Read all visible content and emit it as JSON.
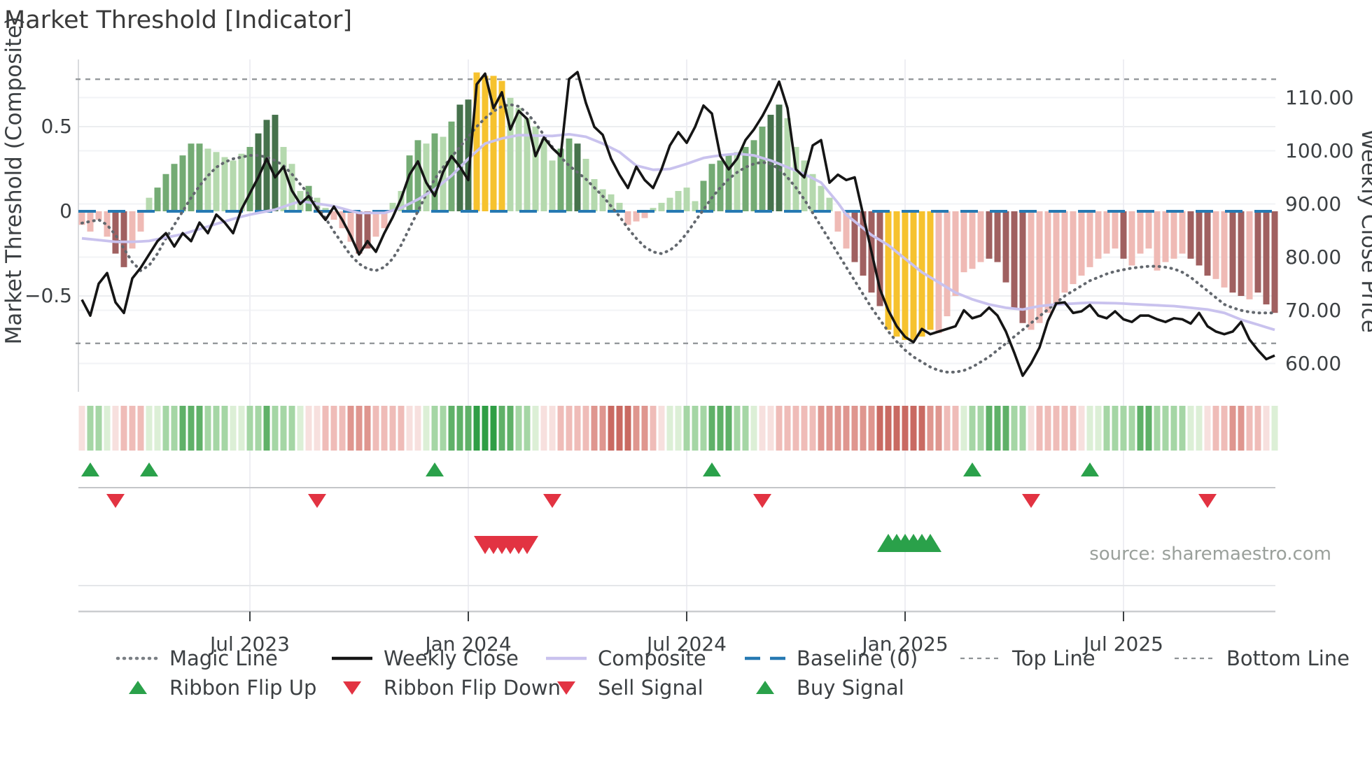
{
  "page": {
    "title": "Market Threshold [Indicator]",
    "source_credit": "source: sharemaestro.com"
  },
  "axes": {
    "left_label": "Market Threshold (Composite)",
    "right_label": "Weekly Close Price",
    "left_tick_labels": [
      "0.5",
      "0",
      "−0.5"
    ],
    "left_tick_values": [
      0.5,
      0,
      -0.5
    ],
    "right_tick_labels": [
      "110.00",
      "100.00",
      "90.00",
      "80.00",
      "70.00",
      "60.00"
    ],
    "right_tick_values": [
      110,
      100,
      90,
      80,
      70,
      60
    ],
    "x_tick_labels": [
      "Jul 2023",
      "Jan 2024",
      "Jul 2024",
      "Jan 2025",
      "Jul 2025"
    ],
    "x_tick_weeks": [
      20,
      46,
      72,
      98,
      124
    ]
  },
  "legend": {
    "row1": [
      {
        "label": "Magic Line",
        "marker": "dotted-gray"
      },
      {
        "label": "Weekly Close",
        "marker": "solid-black"
      },
      {
        "label": "Composite",
        "marker": "solid-lavender"
      },
      {
        "label": "Baseline (0)",
        "marker": "dashed-blue"
      },
      {
        "label": "Top Line",
        "marker": "dashed-gray"
      },
      {
        "label": "Bottom Line",
        "marker": "dashed-gray"
      }
    ],
    "row2": [
      {
        "label": "Ribbon Flip Up",
        "marker": "triangle-up-green"
      },
      {
        "label": "Ribbon Flip Down",
        "marker": "triangle-down-red"
      },
      {
        "label": "Sell Signal",
        "marker": "triangle-down-red"
      },
      {
        "label": "Buy Signal",
        "marker": "triangle-up-green"
      }
    ]
  },
  "colors": {
    "bar_light_green": "#b5d9ae",
    "bar_medium_green": "#74ab74",
    "bar_dark_green": "#46724c",
    "bar_gold": "#f6c22e",
    "bar_light_pink": "#efbab5",
    "bar_dark_red": "#a06060",
    "weekly_close": "#151515",
    "composite_line": "#c9c2ee",
    "magic_line": "#63686e",
    "baseline": "#2679b2",
    "top_bottom_line": "#8f9396",
    "signal_green": "#2aa14a",
    "signal_red": "#e23342",
    "ribbon_green": [
      "#dcefd6",
      "#a5d6a5",
      "#5fb168",
      "#2f9e45"
    ],
    "ribbon_red": [
      "#f7e0de",
      "#efbcb8",
      "#df968f",
      "#c96a62"
    ]
  },
  "chart_data": {
    "type": "bar",
    "x_unit": "week",
    "weeks": 143,
    "left_axis_range": [
      -1.05,
      0.92
    ],
    "right_axis_range": [
      55,
      117
    ],
    "baseline": 0,
    "top_line": 0.78,
    "bottom_line": -0.78,
    "composite_bar_values": [
      -0.08,
      -0.12,
      -0.05,
      -0.15,
      -0.25,
      -0.33,
      -0.22,
      -0.12,
      0.08,
      0.14,
      0.22,
      0.28,
      0.33,
      0.4,
      0.4,
      0.37,
      0.35,
      0.32,
      0.3,
      0.34,
      0.38,
      0.46,
      0.54,
      0.57,
      0.38,
      0.28,
      0.12,
      0.15,
      0.08,
      0.02,
      -0.05,
      -0.1,
      -0.18,
      -0.25,
      -0.22,
      -0.15,
      -0.1,
      0.05,
      0.12,
      0.33,
      0.42,
      0.4,
      0.46,
      0.44,
      0.53,
      0.63,
      0.66,
      0.82,
      0.8,
      0.8,
      0.77,
      0.67,
      0.61,
      0.55,
      0.5,
      0.43,
      0.3,
      0.37,
      0.43,
      0.4,
      0.31,
      0.19,
      0.13,
      0.1,
      0.05,
      -0.08,
      -0.06,
      -0.04,
      0.02,
      0.05,
      0.08,
      0.12,
      0.14,
      0.06,
      0.18,
      0.28,
      0.3,
      0.33,
      0.35,
      0.38,
      0.42,
      0.5,
      0.57,
      0.63,
      0.55,
      0.38,
      0.3,
      0.22,
      0.15,
      0.08,
      -0.12,
      -0.22,
      -0.3,
      -0.38,
      -0.48,
      -0.56,
      -0.7,
      -0.74,
      -0.76,
      -0.76,
      -0.74,
      -0.7,
      -0.72,
      -0.62,
      -0.5,
      -0.36,
      -0.34,
      -0.3,
      -0.28,
      -0.3,
      -0.42,
      -0.58,
      -0.66,
      -0.7,
      -0.66,
      -0.6,
      -0.55,
      -0.48,
      -0.43,
      -0.38,
      -0.33,
      -0.28,
      -0.25,
      -0.22,
      -0.28,
      -0.32,
      -0.25,
      -0.22,
      -0.35,
      -0.3,
      -0.28,
      -0.25,
      -0.28,
      -0.32,
      -0.38,
      -0.4,
      -0.45,
      -0.48,
      -0.5,
      -0.52,
      -0.48,
      -0.55,
      -0.6
    ],
    "composite_bar_classes": "PPPPRRPPLMMMMMMLLLLLMDDDLLLMLLPPPRRPPLLMMLMLMDDGGGGLLLLLLMMDLLLLLPPPLLLLLLMMMMLMMMDDLLLLLLPPRRRRGGGGGGPPPPPPRRRRRPPPPPPPPPPPRPPPPPPPRRRPPRRPRRR",
    "weekly_close": [
      72,
      69,
      75,
      77,
      71.5,
      69.5,
      76,
      78,
      80.5,
      83,
      84.5,
      82,
      84.5,
      83,
      86.5,
      84.5,
      88,
      86.5,
      84.5,
      89,
      92,
      95,
      98.5,
      95,
      97,
      92.5,
      90,
      91.5,
      89,
      87,
      89.5,
      87,
      84,
      80.5,
      83,
      81,
      84.5,
      87.5,
      91,
      95.5,
      98,
      94,
      91.5,
      96,
      99,
      97,
      94.5,
      112.5,
      114.5,
      108,
      111,
      104,
      107.5,
      106,
      99,
      102.5,
      100.5,
      99,
      113.5,
      114.8,
      109,
      104.5,
      103,
      98.5,
      95.5,
      93,
      97,
      94.5,
      93,
      96.5,
      101,
      103.5,
      101.5,
      104.5,
      108.5,
      107,
      99,
      96.5,
      98.5,
      102,
      104,
      106.5,
      109.5,
      113,
      108,
      96.5,
      95,
      101,
      102,
      94,
      95.5,
      94.5,
      95,
      88,
      81,
      74,
      70,
      67,
      65,
      64,
      66.5,
      65.5,
      66,
      66.5,
      67,
      70,
      68.5,
      69,
      70.5,
      69,
      66,
      62,
      57.7,
      60,
      63,
      68,
      71.3,
      71.5,
      69.5,
      69.8,
      71,
      69,
      68.5,
      69.8,
      68.3,
      67.8,
      69,
      69,
      68.3,
      67.8,
      68.5,
      68.3,
      67.5,
      69.5,
      67,
      66,
      65.5,
      66,
      67.8,
      64.5,
      62.5,
      60.8,
      61.5
    ],
    "composite_line": [
      -0.16,
      -0.165,
      -0.17,
      -0.175,
      -0.18,
      -0.18,
      -0.18,
      -0.178,
      -0.175,
      -0.165,
      -0.155,
      -0.145,
      -0.135,
      -0.12,
      -0.105,
      -0.09,
      -0.075,
      -0.06,
      -0.045,
      -0.032,
      -0.02,
      -0.01,
      0.0,
      0.01,
      0.027,
      0.044,
      0.06,
      0.053,
      0.045,
      0.038,
      0.03,
      0.017,
      0.003,
      -0.01,
      -0.01,
      -0.01,
      -0.01,
      0.005,
      0.02,
      0.045,
      0.07,
      0.1,
      0.13,
      0.17,
      0.21,
      0.26,
      0.31,
      0.355,
      0.4,
      0.415,
      0.43,
      0.44,
      0.45,
      0.449,
      0.447,
      0.446,
      0.445,
      0.45,
      0.455,
      0.448,
      0.44,
      0.42,
      0.4,
      0.375,
      0.35,
      0.31,
      0.27,
      0.258,
      0.245,
      0.247,
      0.25,
      0.265,
      0.28,
      0.298,
      0.315,
      0.323,
      0.33,
      0.335,
      0.34,
      0.335,
      0.33,
      0.315,
      0.3,
      0.28,
      0.26,
      0.24,
      0.22,
      0.195,
      0.17,
      0.11,
      0.05,
      -0.02,
      -0.06,
      -0.1,
      -0.14,
      -0.17,
      -0.2,
      -0.24,
      -0.28,
      -0.32,
      -0.36,
      -0.39,
      -0.42,
      -0.45,
      -0.48,
      -0.5,
      -0.52,
      -0.535,
      -0.55,
      -0.56,
      -0.57,
      -0.575,
      -0.58,
      -0.57,
      -0.56,
      -0.555,
      -0.55,
      -0.548,
      -0.545,
      -0.542,
      -0.54,
      -0.541,
      -0.542,
      -0.543,
      -0.545,
      -0.548,
      -0.55,
      -0.553,
      -0.555,
      -0.558,
      -0.56,
      -0.565,
      -0.57,
      -0.575,
      -0.58,
      -0.59,
      -0.6,
      -0.62,
      -0.64,
      -0.655,
      -0.67,
      -0.685,
      -0.7
    ],
    "magic_line": [
      -0.07,
      -0.06,
      -0.05,
      -0.08,
      -0.14,
      -0.22,
      -0.3,
      -0.35,
      -0.32,
      -0.25,
      -0.16,
      -0.08,
      0.0,
      0.08,
      0.15,
      0.21,
      0.26,
      0.29,
      0.31,
      0.32,
      0.33,
      0.33,
      0.32,
      0.3,
      0.27,
      0.22,
      0.16,
      0.1,
      0.03,
      -0.04,
      -0.12,
      -0.19,
      -0.26,
      -0.31,
      -0.34,
      -0.35,
      -0.33,
      -0.28,
      -0.2,
      -0.1,
      0.0,
      0.1,
      0.19,
      0.26,
      0.32,
      0.38,
      0.44,
      0.5,
      0.55,
      0.59,
      0.62,
      0.63,
      0.62,
      0.58,
      0.52,
      0.45,
      0.38,
      0.32,
      0.27,
      0.23,
      0.19,
      0.14,
      0.09,
      0.03,
      -0.03,
      -0.1,
      -0.16,
      -0.21,
      -0.24,
      -0.25,
      -0.23,
      -0.19,
      -0.13,
      -0.06,
      0.01,
      0.08,
      0.14,
      0.19,
      0.23,
      0.26,
      0.28,
      0.29,
      0.28,
      0.25,
      0.2,
      0.14,
      0.07,
      -0.01,
      -0.09,
      -0.17,
      -0.25,
      -0.33,
      -0.41,
      -0.49,
      -0.57,
      -0.64,
      -0.71,
      -0.77,
      -0.82,
      -0.86,
      -0.89,
      -0.92,
      -0.94,
      -0.95,
      -0.95,
      -0.94,
      -0.92,
      -0.89,
      -0.86,
      -0.82,
      -0.78,
      -0.74,
      -0.7,
      -0.66,
      -0.62,
      -0.58,
      -0.54,
      -0.5,
      -0.47,
      -0.44,
      -0.41,
      -0.39,
      -0.37,
      -0.355,
      -0.345,
      -0.335,
      -0.33,
      -0.325,
      -0.325,
      -0.33,
      -0.34,
      -0.36,
      -0.39,
      -0.43,
      -0.47,
      -0.51,
      -0.55,
      -0.57,
      -0.585,
      -0.595,
      -0.6,
      -0.6,
      -0.6
    ],
    "ribbon": [
      -1,
      2,
      2,
      1,
      -1,
      -2,
      -2,
      -2,
      1,
      1,
      2,
      2,
      3,
      3,
      3,
      2,
      2,
      2,
      1,
      1,
      2,
      2,
      3,
      2,
      2,
      2,
      1,
      -1,
      -1,
      -2,
      -2,
      -2,
      -3,
      -3,
      -3,
      -2,
      -2,
      -2,
      -2,
      -1,
      -1,
      1,
      2,
      2,
      3,
      3,
      3,
      4,
      4,
      4,
      3,
      3,
      2,
      2,
      1,
      -1,
      -1,
      -2,
      -2,
      -2,
      -2,
      -3,
      -3,
      -4,
      -4,
      -4,
      -3,
      -3,
      -2,
      -1,
      1,
      1,
      2,
      2,
      2,
      3,
      3,
      3,
      2,
      2,
      1,
      -1,
      -1,
      -2,
      -2,
      -2,
      -2,
      -2,
      -3,
      -3,
      -3,
      -3,
      -3,
      -3,
      -3,
      -4,
      -4,
      -4,
      -4,
      -4,
      -4,
      -3,
      -3,
      -2,
      -2,
      1,
      2,
      2,
      3,
      3,
      3,
      2,
      2,
      -1,
      -2,
      -2,
      -2,
      -2,
      -2,
      -1,
      1,
      1,
      2,
      2,
      2,
      2,
      3,
      3,
      2,
      2,
      2,
      2,
      1,
      1,
      -1,
      -2,
      -2,
      -3,
      -3,
      -2,
      -2,
      -1,
      1
    ],
    "signals": {
      "ribbon_flip_up_weeks": [
        1,
        8,
        42,
        75,
        106,
        120
      ],
      "ribbon_flip_down_weeks": [
        4,
        28,
        56,
        81,
        113,
        134
      ],
      "sell_signal_weeks": [
        48,
        49,
        50,
        51,
        52,
        53
      ],
      "buy_signal_weeks": [
        96,
        97,
        98,
        99,
        100,
        101
      ]
    }
  }
}
